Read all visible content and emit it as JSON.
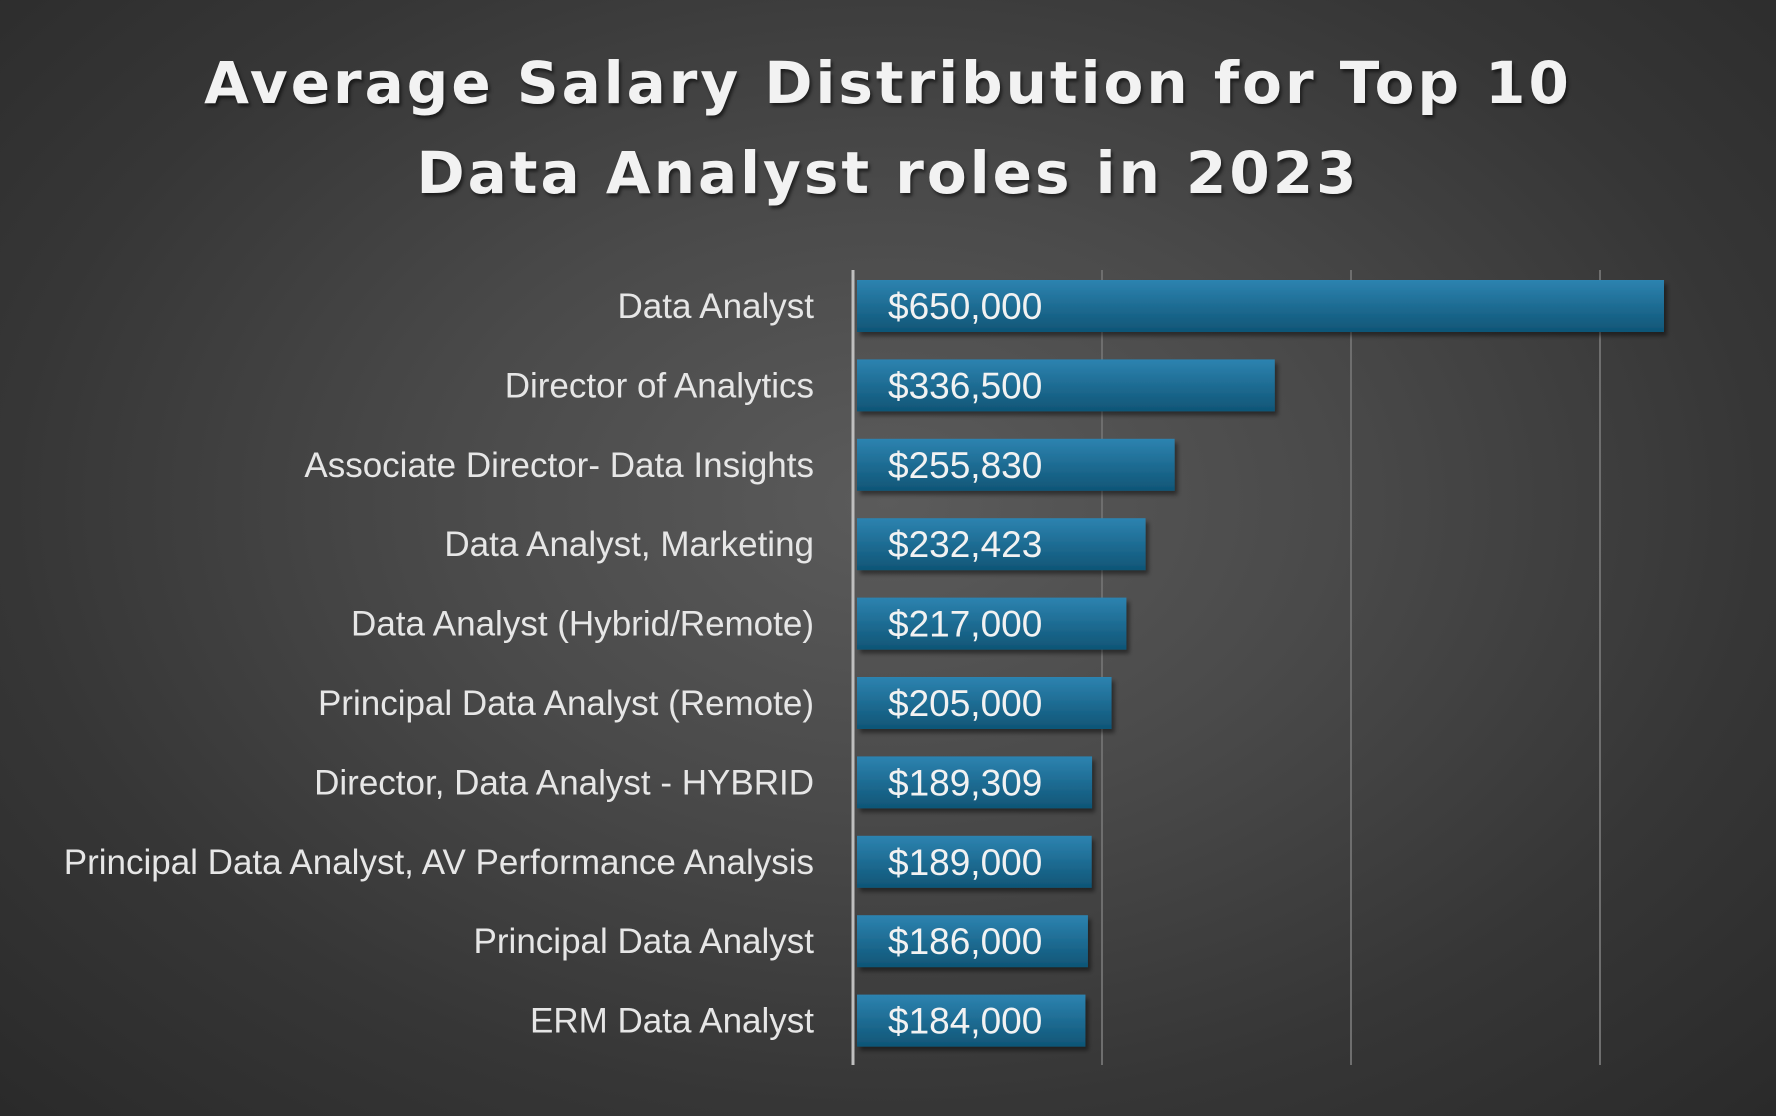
{
  "title_line1": "Average Salary Distribution for Top 10",
  "title_line2": "Data Analyst roles in 2023",
  "colors": {
    "bar_top": "#2d83b0",
    "bar_bottom": "#0f5576",
    "gridline": "#6e6e6e",
    "axis": "#bfbfbf"
  },
  "chart_data": {
    "type": "bar",
    "orientation": "horizontal",
    "title": "Average Salary Distribution for Top 10 Data Analyst roles in 2023",
    "xlabel": "",
    "ylabel": "",
    "xlim": [
      0,
      650000
    ],
    "grid": true,
    "legend": "none",
    "categories": [
      "Data Analyst",
      "Director of Analytics",
      "Associate Director- Data Insights",
      "Data Analyst, Marketing",
      "Data Analyst (Hybrid/Remote)",
      "Principal Data Analyst (Remote)",
      "Director, Data Analyst - HYBRID",
      "Principal Data Analyst, AV Performance Analysis",
      "Principal Data Analyst",
      "ERM Data Analyst"
    ],
    "values": [
      650000,
      336500,
      255830,
      232423,
      217000,
      205000,
      189309,
      189000,
      186000,
      184000
    ],
    "data_labels": [
      "$650,000",
      "$336,500",
      "$255,830",
      "$232,423",
      "$217,000",
      "$205,000",
      "$189,309",
      "$189,000",
      "$186,000",
      "$184,000"
    ]
  }
}
